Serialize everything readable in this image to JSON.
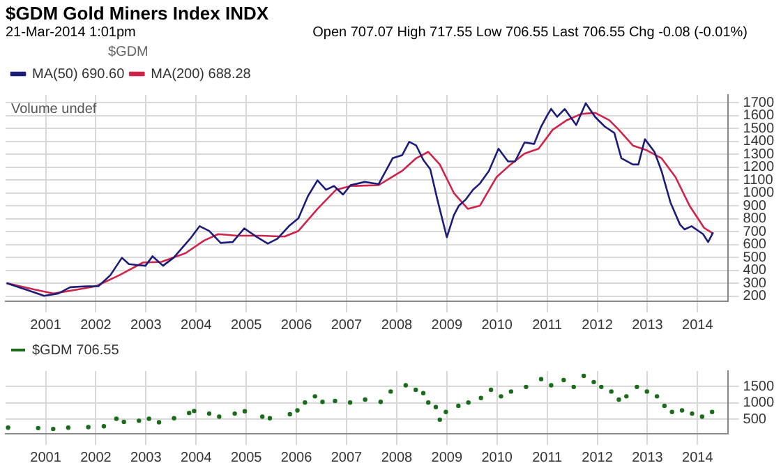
{
  "chart_data": [
    {
      "type": "line",
      "title": "$GDM Gold Miners Index INDX",
      "subtitle": "21-Mar-2014 1:01pm",
      "legend_title": "$GDM",
      "annotations": [
        "Open 707.07  High 717.55  Low 706.55  Last 706.55  Chg -0.08 (-0.01%)",
        "Volume undef"
      ],
      "xlim": [
        2000.2,
        2014.6
      ],
      "xticks": [
        2001,
        2002,
        2003,
        2004,
        2005,
        2006,
        2007,
        2008,
        2009,
        2010,
        2011,
        2012,
        2013,
        2014
      ],
      "ylim": [
        160,
        1760
      ],
      "yticks": [
        200,
        300,
        400,
        500,
        600,
        700,
        800,
        900,
        1000,
        1100,
        1200,
        1300,
        1400,
        1500,
        1600,
        1700
      ],
      "grid": true,
      "legend": "top left",
      "marker": "none",
      "line_style": "solid",
      "series": [
        {
          "name": "MA(50) 690.60",
          "color": "#1c1c7a",
          "x": [
            2000.22,
            2000.78,
            2000.97,
            2001.25,
            2001.49,
            2001.82,
            2002.05,
            2002.29,
            2002.52,
            2002.66,
            2002.85,
            2002.99,
            2003.13,
            2003.34,
            2003.55,
            2003.88,
            2004.07,
            2004.26,
            2004.49,
            2004.73,
            2004.96,
            2005.2,
            2005.43,
            2005.62,
            2005.85,
            2006.04,
            2006.23,
            2006.42,
            2006.59,
            2006.75,
            2006.93,
            2007.08,
            2007.36,
            2007.64,
            2007.92,
            2008.11,
            2008.25,
            2008.39,
            2008.53,
            2008.67,
            2008.81,
            2009.0,
            2009.14,
            2009.24,
            2009.38,
            2009.52,
            2009.66,
            2009.84,
            2010.03,
            2010.22,
            2010.36,
            2010.55,
            2010.74,
            2010.88,
            2011.0,
            2011.08,
            2011.2,
            2011.35,
            2011.58,
            2011.77,
            2011.96,
            2012.15,
            2012.34,
            2012.48,
            2012.71,
            2012.82,
            2012.95,
            2013.14,
            2013.28,
            2013.46,
            2013.65,
            2013.74,
            2013.88,
            2014.11,
            2014.21,
            2014.31
          ],
          "values": [
            300,
            227,
            202,
            220,
            269,
            276,
            276,
            362,
            497,
            448,
            440,
            435,
            509,
            435,
            497,
            644,
            742,
            705,
            612,
            619,
            725,
            661,
            607,
            644,
            742,
            803,
            975,
            1097,
            1024,
            1053,
            987,
            1060,
            1085,
            1068,
            1269,
            1293,
            1396,
            1367,
            1256,
            1183,
            950,
            656,
            827,
            901,
            950,
            1024,
            1073,
            1171,
            1342,
            1244,
            1244,
            1391,
            1379,
            1514,
            1600,
            1651,
            1590,
            1650,
            1526,
            1695,
            1587,
            1514,
            1465,
            1269,
            1220,
            1220,
            1416,
            1318,
            1171,
            925,
            754,
            717,
            742,
            680,
            619,
            693
          ]
        },
        {
          "name": "MA(200) 688.28",
          "color": "#d0234a",
          "x": [
            2000.22,
            2000.78,
            2001.16,
            2001.63,
            2002.0,
            2002.47,
            2002.94,
            2003.31,
            2003.79,
            2004.16,
            2004.44,
            2004.82,
            2005.29,
            2005.76,
            2006.04,
            2006.42,
            2006.79,
            2007.08,
            2007.64,
            2008.11,
            2008.39,
            2008.63,
            2008.86,
            2009.14,
            2009.42,
            2009.66,
            2009.99,
            2010.27,
            2010.55,
            2010.83,
            2011.11,
            2011.39,
            2011.68,
            2011.96,
            2012.24,
            2012.43,
            2012.71,
            2012.99,
            2013.28,
            2013.56,
            2013.84,
            2014.13,
            2014.31
          ],
          "values": [
            300,
            251,
            220,
            251,
            276,
            362,
            460,
            465,
            533,
            631,
            680,
            668,
            668,
            661,
            705,
            876,
            1024,
            1053,
            1060,
            1171,
            1269,
            1318,
            1220,
            999,
            876,
            901,
            1122,
            1220,
            1305,
            1342,
            1489,
            1563,
            1612,
            1620,
            1563,
            1489,
            1367,
            1330,
            1269,
            1122,
            901,
            729,
            685
          ]
        }
      ]
    },
    {
      "type": "scatter",
      "legend": "top left",
      "marker": "circle",
      "grid": true,
      "xlim": [
        2000.2,
        2014.6
      ],
      "xticks": [
        2001,
        2002,
        2003,
        2004,
        2005,
        2006,
        2007,
        2008,
        2009,
        2010,
        2011,
        2012,
        2013,
        2014
      ],
      "ylim": [
        50,
        1980
      ],
      "yticks": [
        500,
        1000,
        1500
      ],
      "series": [
        {
          "name": "$GDM 706.55",
          "color": "#1a6b1a",
          "x": [
            2000.25,
            2000.85,
            2001.15,
            2001.45,
            2001.85,
            2002.16,
            2002.41,
            2002.56,
            2002.86,
            2003.06,
            2003.26,
            2003.56,
            2003.86,
            2003.96,
            2004.26,
            2004.46,
            2004.77,
            2004.97,
            2005.32,
            2005.47,
            2005.87,
            2006.02,
            2006.17,
            2006.37,
            2006.52,
            2006.77,
            2007.07,
            2007.37,
            2007.68,
            2007.88,
            2008.18,
            2008.38,
            2008.53,
            2008.63,
            2008.78,
            2008.86,
            2008.98,
            2009.23,
            2009.43,
            2009.68,
            2009.88,
            2010.08,
            2010.28,
            2010.58,
            2010.88,
            2011.08,
            2011.33,
            2011.53,
            2011.73,
            2011.93,
            2012.08,
            2012.28,
            2012.43,
            2012.58,
            2012.79,
            2012.99,
            2013.19,
            2013.34,
            2013.49,
            2013.69,
            2013.89,
            2014.09,
            2014.29
          ],
          "values": [
            239,
            225,
            198,
            239,
            253,
            280,
            511,
            413,
            450,
            511,
            404,
            527,
            690,
            750,
            670,
            574,
            670,
            740,
            574,
            527,
            650,
            770,
            1010,
            1200,
            1030,
            1060,
            1010,
            1100,
            1030,
            1350,
            1540,
            1400,
            1300,
            1010,
            870,
            482,
            720,
            910,
            1010,
            1150,
            1400,
            1200,
            1350,
            1490,
            1730,
            1540,
            1700,
            1490,
            1830,
            1640,
            1490,
            1350,
            1100,
            1200,
            1490,
            1350,
            1200,
            910,
            720,
            770,
            670,
            574,
            720
          ]
        }
      ]
    }
  ]
}
